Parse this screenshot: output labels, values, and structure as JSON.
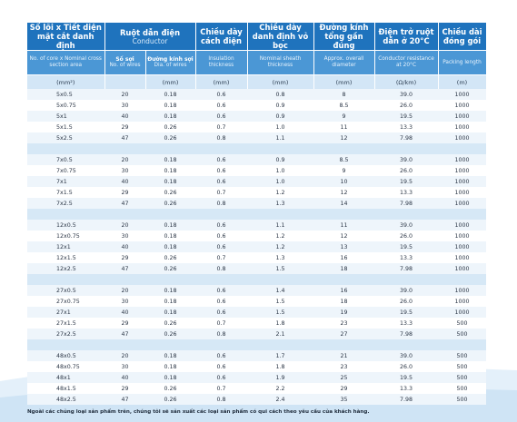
{
  "table": {
    "columns": [
      {
        "title": "Số lõi x Tiết diện mặt cắt danh định",
        "subtitle": "No. of core x Nominal cross section area",
        "unit": "(mm²)"
      },
      {
        "title": "Ruột dẫn điện",
        "subtitle": "Conductor",
        "parts": [
          {
            "title": "Số sợi",
            "subtitle": "No. of wires"
          },
          {
            "title": "Đường kính sợi",
            "subtitle": "Dia. of wires",
            "unit": "(mm)"
          }
        ]
      },
      {
        "title": "Chiều dày cách điện",
        "subtitle": "Insulation thickness",
        "unit": "(mm)"
      },
      {
        "title": "Chiều dày danh định vỏ bọc",
        "subtitle": "Nominal sheath thickness",
        "unit": "(mm)"
      },
      {
        "title": "Đường kính tổng gần đúng",
        "subtitle": "Approx. overall diameter",
        "unit": "(mm)"
      },
      {
        "title": "Điện trở ruột dẫn ở 20°C",
        "subtitle": "Conductor resistance at 20°C",
        "unit": "(Ω/km)"
      },
      {
        "title": "Chiều dài đóng gói",
        "subtitle": "Packing length",
        "unit": "(m)"
      }
    ],
    "groups": [
      [
        [
          "5x0.5",
          "20",
          "0.18",
          "0.6",
          "0.8",
          "8",
          "39.0",
          "1000"
        ],
        [
          "5x0.75",
          "30",
          "0.18",
          "0.6",
          "0.9",
          "8.5",
          "26.0",
          "1000"
        ],
        [
          "5x1",
          "40",
          "0.18",
          "0.6",
          "0.9",
          "9",
          "19.5",
          "1000"
        ],
        [
          "5x1.5",
          "29",
          "0.26",
          "0.7",
          "1.0",
          "11",
          "13.3",
          "1000"
        ],
        [
          "5x2.5",
          "47",
          "0.26",
          "0.8",
          "1.1",
          "12",
          "7.98",
          "1000"
        ]
      ],
      [
        [
          "7x0.5",
          "20",
          "0.18",
          "0.6",
          "0.9",
          "8.5",
          "39.0",
          "1000"
        ],
        [
          "7x0.75",
          "30",
          "0.18",
          "0.6",
          "1.0",
          "9",
          "26.0",
          "1000"
        ],
        [
          "7x1",
          "40",
          "0.18",
          "0.6",
          "1.0",
          "10",
          "19.5",
          "1000"
        ],
        [
          "7x1.5",
          "29",
          "0.26",
          "0.7",
          "1.2",
          "12",
          "13.3",
          "1000"
        ],
        [
          "7x2.5",
          "47",
          "0.26",
          "0.8",
          "1.3",
          "14",
          "7.98",
          "1000"
        ]
      ],
      [
        [
          "12x0.5",
          "20",
          "0.18",
          "0.6",
          "1.1",
          "11",
          "39.0",
          "1000"
        ],
        [
          "12x0.75",
          "30",
          "0.18",
          "0.6",
          "1.2",
          "12",
          "26.0",
          "1000"
        ],
        [
          "12x1",
          "40",
          "0.18",
          "0.6",
          "1.2",
          "13",
          "19.5",
          "1000"
        ],
        [
          "12x1.5",
          "29",
          "0.26",
          "0.7",
          "1.3",
          "16",
          "13.3",
          "1000"
        ],
        [
          "12x2.5",
          "47",
          "0.26",
          "0.8",
          "1.5",
          "18",
          "7.98",
          "1000"
        ]
      ],
      [
        [
          "27x0.5",
          "20",
          "0.18",
          "0.6",
          "1.4",
          "16",
          "39.0",
          "1000"
        ],
        [
          "27x0.75",
          "30",
          "0.18",
          "0.6",
          "1.5",
          "18",
          "26.0",
          "1000"
        ],
        [
          "27x1",
          "40",
          "0.18",
          "0.6",
          "1.5",
          "19",
          "19.5",
          "1000"
        ],
        [
          "27x1.5",
          "29",
          "0.26",
          "0.7",
          "1.8",
          "23",
          "13.3",
          "500"
        ],
        [
          "27x2.5",
          "47",
          "0.26",
          "0.8",
          "2.1",
          "27",
          "7.98",
          "500"
        ]
      ],
      [
        [
          "48x0.5",
          "20",
          "0.18",
          "0.6",
          "1.7",
          "21",
          "39.0",
          "500"
        ],
        [
          "48x0.75",
          "30",
          "0.18",
          "0.6",
          "1.8",
          "23",
          "26.0",
          "500"
        ],
        [
          "48x1",
          "40",
          "0.18",
          "0.6",
          "1.9",
          "25",
          "19.5",
          "500"
        ],
        [
          "48x1.5",
          "29",
          "0.26",
          "0.7",
          "2.2",
          "29",
          "13.3",
          "500"
        ],
        [
          "48x2.5",
          "47",
          "0.26",
          "0.8",
          "2.4",
          "35",
          "7.98",
          "500"
        ]
      ]
    ]
  },
  "note": "Ngoài các chủng loại sản phẩm trên, chúng tôi sẽ sản xuất các loại sản phẩm có qui cách theo yêu cầu của khách hàng."
}
